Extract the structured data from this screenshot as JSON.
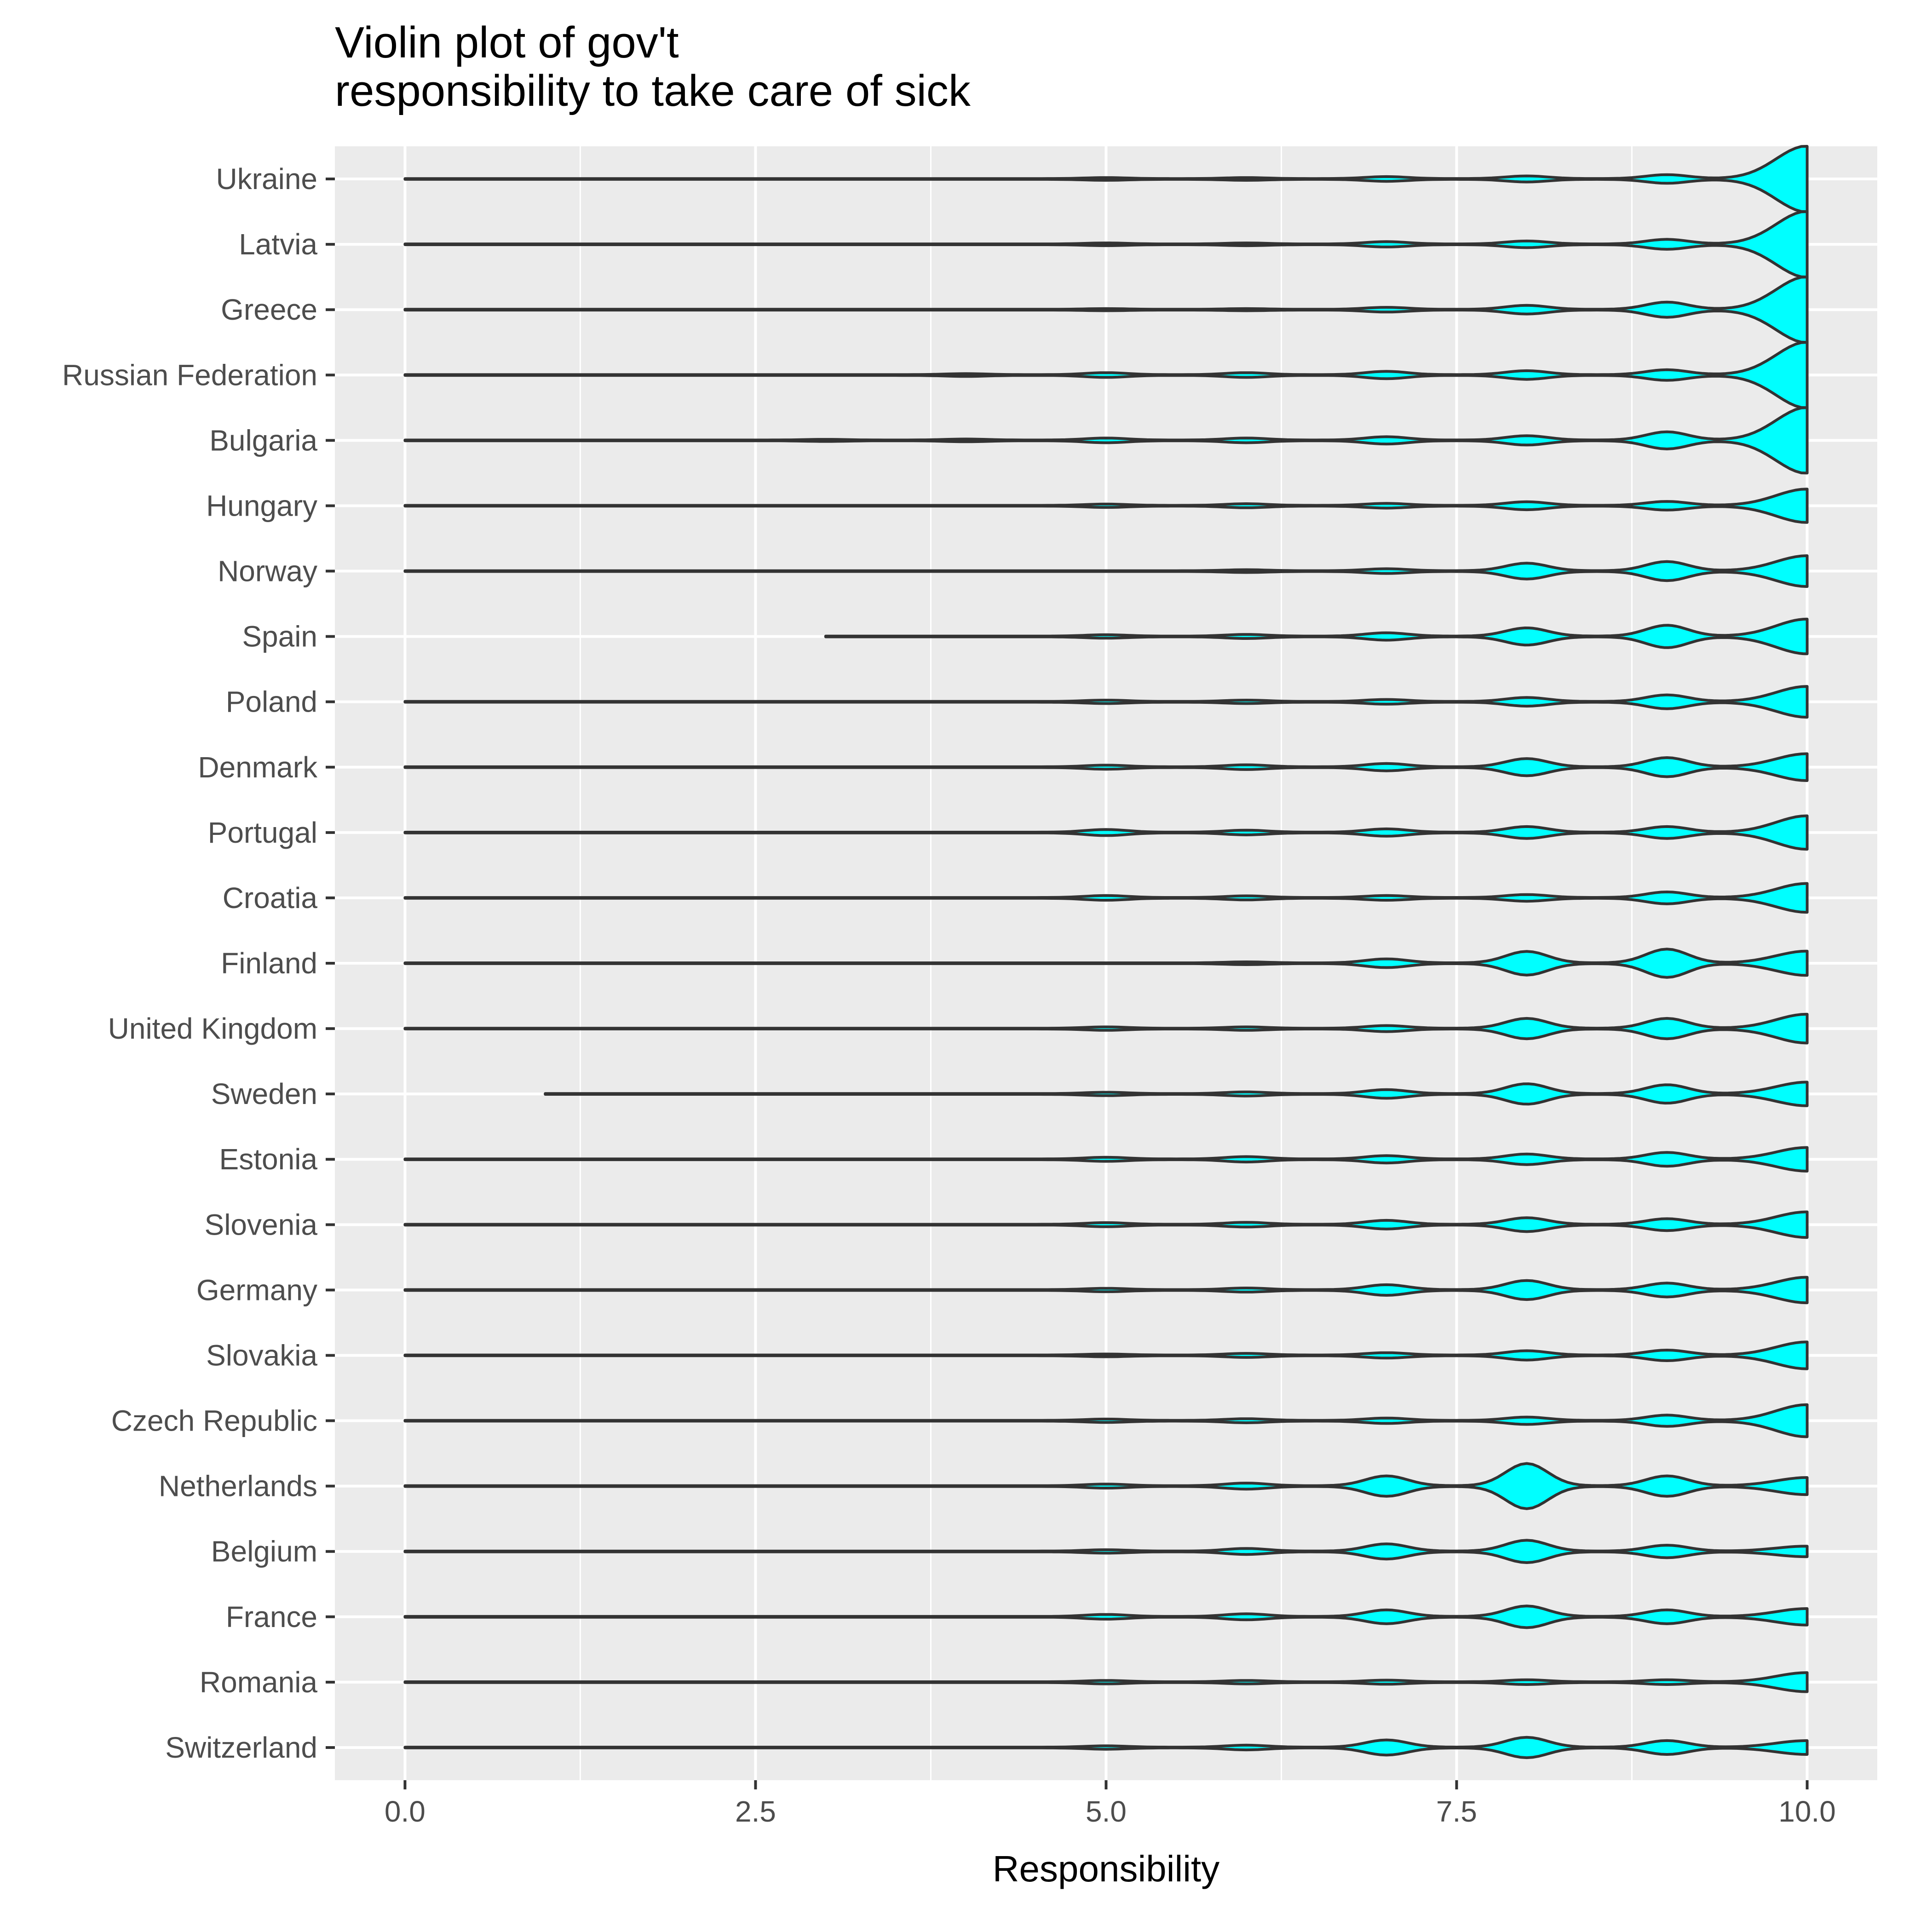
{
  "chart_data": {
    "type": "violin",
    "title": "Violin plot of gov't\nresponsibility to take care of sick",
    "title_lines": [
      "Violin plot of gov't",
      "responsibility to take care of sick"
    ],
    "xlabel": "Responsibility",
    "ylabel": "",
    "xlim": [
      -0.5,
      10.5
    ],
    "x_ticks": [
      0.0,
      2.5,
      5.0,
      7.5,
      10.0
    ],
    "x_tick_labels": [
      "0.0",
      "2.5",
      "5.0",
      "7.5",
      "10.0"
    ],
    "grid": true,
    "fill_color": "#00ffff",
    "outline_color": "#333333",
    "panel_color": "#ebebeb",
    "grid_color": "#ffffff",
    "categories": [
      "Ukraine",
      "Latvia",
      "Greece",
      "Russian Federation",
      "Bulgaria",
      "Hungary",
      "Norway",
      "Spain",
      "Poland",
      "Denmark",
      "Portugal",
      "Croatia",
      "Finland",
      "United Kingdom",
      "Sweden",
      "Estonia",
      "Slovenia",
      "Germany",
      "Slovakia",
      "Czech Republic",
      "Netherlands",
      "Belgium",
      "France",
      "Romania",
      "Switzerland"
    ],
    "series": [
      {
        "category": "Ukraine",
        "min": 0,
        "max": 10,
        "density_peaks": [
          [
            5,
            0.03
          ],
          [
            6,
            0.03
          ],
          [
            7,
            0.06
          ],
          [
            8,
            0.08
          ],
          [
            9,
            0.12
          ],
          [
            10,
            1.0
          ]
        ]
      },
      {
        "category": "Latvia",
        "min": 0,
        "max": 10,
        "density_peaks": [
          [
            5,
            0.03
          ],
          [
            6,
            0.03
          ],
          [
            7,
            0.07
          ],
          [
            8,
            0.09
          ],
          [
            9,
            0.14
          ],
          [
            10,
            1.0
          ]
        ]
      },
      {
        "category": "Greece",
        "min": 0,
        "max": 10,
        "density_peaks": [
          [
            5,
            0.02
          ],
          [
            6,
            0.02
          ],
          [
            7,
            0.06
          ],
          [
            8,
            0.12
          ],
          [
            9,
            0.22
          ],
          [
            10,
            1.0
          ]
        ]
      },
      {
        "category": "Russian Federation",
        "min": 0,
        "max": 10,
        "density_peaks": [
          [
            4,
            0.03
          ],
          [
            5,
            0.06
          ],
          [
            6,
            0.06
          ],
          [
            7,
            0.1
          ],
          [
            8,
            0.12
          ],
          [
            9,
            0.15
          ],
          [
            10,
            1.0
          ]
        ]
      },
      {
        "category": "Bulgaria",
        "min": 0,
        "max": 10,
        "density_peaks": [
          [
            3,
            0.02
          ],
          [
            4,
            0.03
          ],
          [
            5,
            0.06
          ],
          [
            6,
            0.06
          ],
          [
            7,
            0.1
          ],
          [
            8,
            0.13
          ],
          [
            9,
            0.25
          ],
          [
            10,
            1.0
          ]
        ]
      },
      {
        "category": "Hungary",
        "min": 0,
        "max": 10,
        "density_peaks": [
          [
            5,
            0.04
          ],
          [
            6,
            0.05
          ],
          [
            7,
            0.06
          ],
          [
            8,
            0.11
          ],
          [
            9,
            0.12
          ],
          [
            10,
            0.5
          ]
        ]
      },
      {
        "category": "Norway",
        "min": 0,
        "max": 10,
        "density_peaks": [
          [
            6,
            0.03
          ],
          [
            7,
            0.06
          ],
          [
            8,
            0.23
          ],
          [
            9,
            0.28
          ],
          [
            10,
            0.46
          ]
        ]
      },
      {
        "category": "Spain",
        "min": 3,
        "max": 10,
        "density_peaks": [
          [
            5,
            0.04
          ],
          [
            6,
            0.05
          ],
          [
            7,
            0.1
          ],
          [
            8,
            0.25
          ],
          [
            9,
            0.33
          ],
          [
            10,
            0.52
          ]
        ]
      },
      {
        "category": "Poland",
        "min": 0,
        "max": 10,
        "density_peaks": [
          [
            5,
            0.04
          ],
          [
            6,
            0.04
          ],
          [
            7,
            0.06
          ],
          [
            8,
            0.12
          ],
          [
            9,
            0.2
          ],
          [
            10,
            0.46
          ]
        ]
      },
      {
        "category": "Denmark",
        "min": 0,
        "max": 10,
        "density_peaks": [
          [
            5,
            0.05
          ],
          [
            6,
            0.06
          ],
          [
            7,
            0.1
          ],
          [
            8,
            0.25
          ],
          [
            9,
            0.28
          ],
          [
            10,
            0.4
          ]
        ]
      },
      {
        "category": "Portugal",
        "min": 0,
        "max": 10,
        "density_peaks": [
          [
            5,
            0.08
          ],
          [
            6,
            0.06
          ],
          [
            7,
            0.1
          ],
          [
            8,
            0.17
          ],
          [
            9,
            0.17
          ],
          [
            10,
            0.5
          ]
        ]
      },
      {
        "category": "Croatia",
        "min": 0,
        "max": 10,
        "density_peaks": [
          [
            5,
            0.06
          ],
          [
            6,
            0.05
          ],
          [
            7,
            0.06
          ],
          [
            8,
            0.09
          ],
          [
            9,
            0.17
          ],
          [
            10,
            0.43
          ]
        ]
      },
      {
        "category": "Finland",
        "min": 0,
        "max": 10,
        "density_peaks": [
          [
            6,
            0.03
          ],
          [
            7,
            0.12
          ],
          [
            8,
            0.35
          ],
          [
            9,
            0.42
          ],
          [
            10,
            0.36
          ]
        ]
      },
      {
        "category": "United Kingdom",
        "min": 0,
        "max": 10,
        "density_peaks": [
          [
            5,
            0.04
          ],
          [
            6,
            0.04
          ],
          [
            7,
            0.08
          ],
          [
            8,
            0.3
          ],
          [
            9,
            0.3
          ],
          [
            10,
            0.43
          ]
        ]
      },
      {
        "category": "Sweden",
        "min": 1,
        "max": 10,
        "density_peaks": [
          [
            5,
            0.04
          ],
          [
            6,
            0.05
          ],
          [
            7,
            0.12
          ],
          [
            8,
            0.3
          ],
          [
            9,
            0.27
          ],
          [
            10,
            0.35
          ]
        ]
      },
      {
        "category": "Estonia",
        "min": 0,
        "max": 10,
        "density_peaks": [
          [
            5,
            0.05
          ],
          [
            6,
            0.07
          ],
          [
            7,
            0.1
          ],
          [
            8,
            0.15
          ],
          [
            9,
            0.2
          ],
          [
            10,
            0.35
          ]
        ]
      },
      {
        "category": "Slovenia",
        "min": 0,
        "max": 10,
        "density_peaks": [
          [
            5,
            0.05
          ],
          [
            6,
            0.06
          ],
          [
            7,
            0.12
          ],
          [
            8,
            0.2
          ],
          [
            9,
            0.17
          ],
          [
            10,
            0.38
          ]
        ]
      },
      {
        "category": "Germany",
        "min": 0,
        "max": 10,
        "density_peaks": [
          [
            5,
            0.04
          ],
          [
            6,
            0.05
          ],
          [
            7,
            0.15
          ],
          [
            8,
            0.28
          ],
          [
            9,
            0.2
          ],
          [
            10,
            0.38
          ]
        ]
      },
      {
        "category": "Slovakia",
        "min": 0,
        "max": 10,
        "density_peaks": [
          [
            5,
            0.03
          ],
          [
            6,
            0.05
          ],
          [
            7,
            0.07
          ],
          [
            8,
            0.13
          ],
          [
            9,
            0.15
          ],
          [
            10,
            0.4
          ]
        ]
      },
      {
        "category": "Czech Republic",
        "min": 0,
        "max": 10,
        "density_peaks": [
          [
            5,
            0.04
          ],
          [
            6,
            0.05
          ],
          [
            7,
            0.07
          ],
          [
            8,
            0.1
          ],
          [
            9,
            0.16
          ],
          [
            10,
            0.48
          ]
        ]
      },
      {
        "category": "Netherlands",
        "min": 0,
        "max": 10,
        "density_peaks": [
          [
            5,
            0.05
          ],
          [
            6,
            0.08
          ],
          [
            7,
            0.3
          ],
          [
            8,
            0.68
          ],
          [
            9,
            0.3
          ],
          [
            10,
            0.25
          ]
        ]
      },
      {
        "category": "Belgium",
        "min": 0,
        "max": 10,
        "density_peaks": [
          [
            5,
            0.04
          ],
          [
            6,
            0.08
          ],
          [
            7,
            0.22
          ],
          [
            8,
            0.33
          ],
          [
            9,
            0.18
          ],
          [
            10,
            0.15
          ]
        ]
      },
      {
        "category": "France",
        "min": 0,
        "max": 10,
        "density_peaks": [
          [
            5,
            0.06
          ],
          [
            6,
            0.08
          ],
          [
            7,
            0.2
          ],
          [
            8,
            0.32
          ],
          [
            9,
            0.2
          ],
          [
            10,
            0.24
          ]
        ]
      },
      {
        "category": "Romania",
        "min": 0,
        "max": 10,
        "density_peaks": [
          [
            5,
            0.04
          ],
          [
            6,
            0.04
          ],
          [
            7,
            0.05
          ],
          [
            8,
            0.06
          ],
          [
            9,
            0.06
          ],
          [
            10,
            0.28
          ]
        ]
      },
      {
        "category": "Switzerland",
        "min": 0,
        "max": 10,
        "density_peaks": [
          [
            5,
            0.04
          ],
          [
            6,
            0.06
          ],
          [
            7,
            0.22
          ],
          [
            8,
            0.3
          ],
          [
            9,
            0.2
          ],
          [
            10,
            0.2
          ]
        ]
      }
    ]
  }
}
